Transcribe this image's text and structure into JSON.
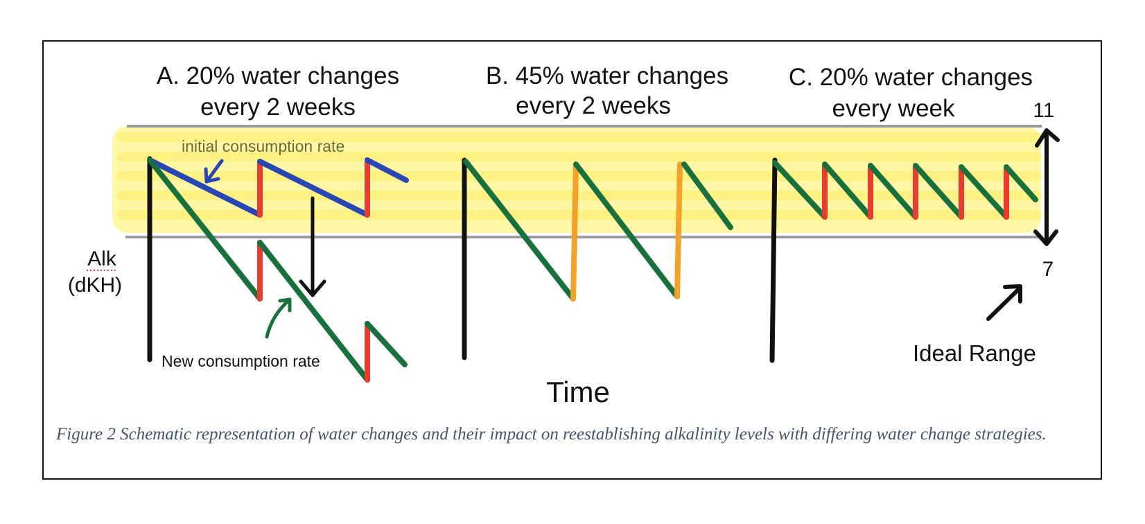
{
  "panels": [
    {
      "title_line1": "A. 20% water changes",
      "title_line2": "every 2 weeks"
    },
    {
      "title_line1": "B. 45% water changes",
      "title_line2": "every 2 weeks"
    },
    {
      "title_line1": "C. 20% water changes",
      "title_line2": "every week"
    }
  ],
  "axis": {
    "y_label_line1": "Alk",
    "y_label_line2": "(dKH)",
    "x_label": "Time"
  },
  "range": {
    "upper": "11",
    "lower": "7",
    "label": "Ideal Range"
  },
  "annotations": {
    "initial_rate": "initial consumption rate",
    "new_rate": "New consumption rate"
  },
  "colors": {
    "ideal_band": "#fff7a6",
    "consumption_initial": "#2846b4",
    "consumption_new": "#18703c",
    "water_change_small": "#e83c30",
    "water_change_large": "#f5a028",
    "axis_line": "#111111",
    "range_line": "#9a9aa0"
  },
  "caption": "Figure 2 Schematic representation of water changes and their impact on reestablishing alkalinity levels with differing water change strategies."
}
